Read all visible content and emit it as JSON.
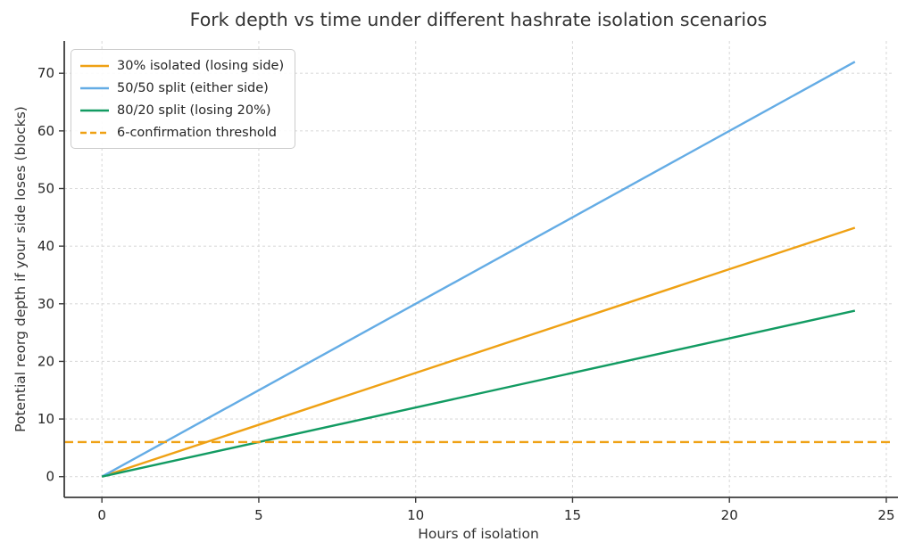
{
  "chart_data": {
    "type": "line",
    "title": "Fork depth vs time under different hashrate isolation scenarios",
    "xlabel": "Hours of isolation",
    "ylabel": "Potential reorg depth if your side loses (blocks)",
    "xlim": [
      -1.2,
      25.2
    ],
    "ylim": [
      -3.6,
      75.6
    ],
    "xticks": [
      0,
      5,
      10,
      15,
      20,
      25
    ],
    "yticks": [
      0,
      10,
      20,
      30,
      40,
      50,
      60,
      70
    ],
    "grid": true,
    "legend_position": "upper-left",
    "series": [
      {
        "name": "30% isolated (losing side)",
        "color": "#EFA114",
        "style": "solid",
        "points": [
          [
            0,
            0
          ],
          [
            24,
            43.2
          ]
        ]
      },
      {
        "name": "50/50 split (either side)",
        "color": "#64ACE5",
        "style": "solid",
        "points": [
          [
            0,
            0
          ],
          [
            24,
            72
          ]
        ]
      },
      {
        "name": "80/20 split (losing 20%)",
        "color": "#129B62",
        "style": "solid",
        "points": [
          [
            0,
            0
          ],
          [
            24,
            28.8
          ]
        ]
      },
      {
        "name": "6-confirmation threshold",
        "color": "#EFA114",
        "style": "dashed",
        "threshold_y": 6,
        "points": [
          [
            -1.2,
            6
          ],
          [
            25.2,
            6
          ]
        ]
      }
    ],
    "colors": {
      "background": "#FFFFFF",
      "grid": "#DBDBDB",
      "axis": "#3B3B3B",
      "text": "#262626",
      "title": "#333333"
    }
  }
}
